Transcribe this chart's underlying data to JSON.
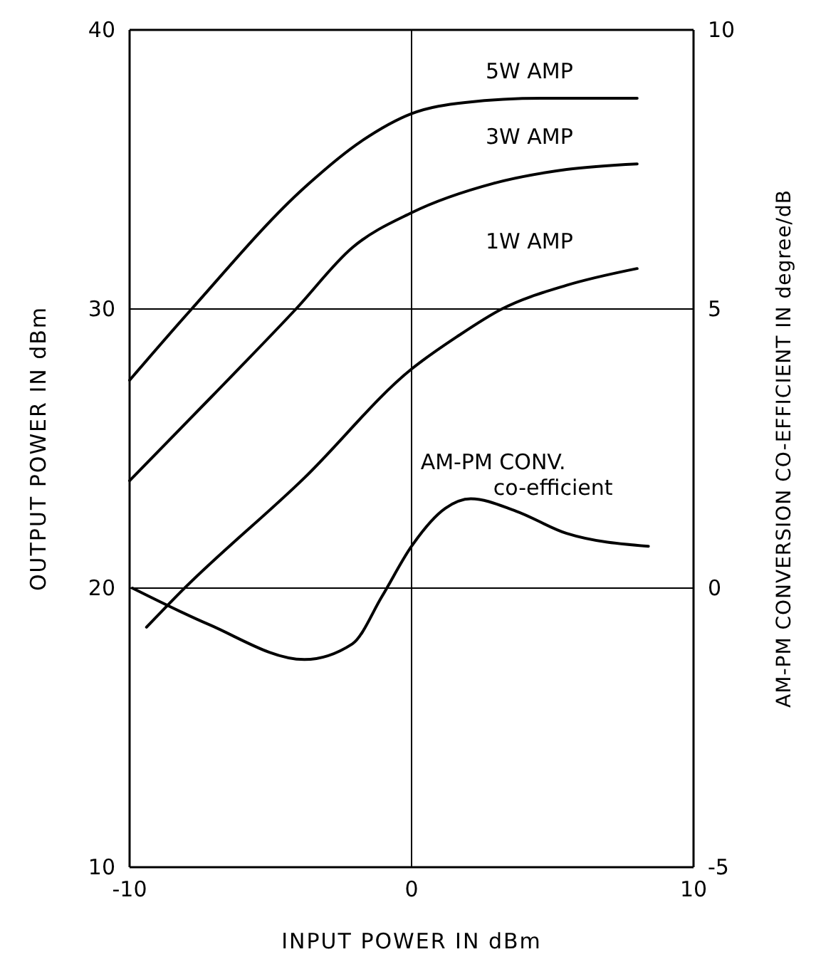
{
  "chart_data": {
    "type": "line",
    "xlabel": "INPUT POWER IN dBm",
    "ylabel": "OUTPUT POWER IN dBm",
    "y2label": "AM-PM CONVERSION CO-EFFICIENT IN degree/dB",
    "xlim": [
      -10,
      10
    ],
    "xticks": [
      {
        "value": -10,
        "label": "-10"
      },
      0,
      10
    ],
    "ylim": [
      10,
      40
    ],
    "yticks": [
      10,
      20,
      30,
      40
    ],
    "y2lim": [
      -5,
      10
    ],
    "y2ticks": [
      {
        "value": -5,
        "label": "-5"
      },
      0,
      5,
      10
    ],
    "grid": true,
    "marker": "none",
    "line_style": "solid",
    "series": [
      {
        "name": "5W AMP",
        "color": "#000000",
        "x": [
          -10,
          -7.8,
          -3.8,
          -1.8,
          0,
          1.9,
          4.6,
          8
        ],
        "values": [
          27.45,
          30,
          34.35,
          36,
          37,
          37.4,
          37.55,
          37.55
        ]
      },
      {
        "name": "3W AMP",
        "color": "#000000",
        "x": [
          -10,
          -7.1,
          -4.1,
          -2.1,
          0,
          2.9,
          5.5,
          8
        ],
        "values": [
          23.85,
          26.85,
          30,
          32.2,
          33.45,
          34.5,
          35,
          35.2
        ]
      },
      {
        "name": "1W AMP",
        "color": "#000000",
        "x": [
          -9.4,
          -8.2,
          -3.8,
          0,
          1.6,
          3.2,
          5.5,
          8
        ],
        "values": [
          18.6,
          19.85,
          23.95,
          27.85,
          29,
          30,
          30.85,
          31.45
        ]
      },
      {
        "name": "AM-PM CONV. co-efficient",
        "color": "#000000",
        "axis": "y2",
        "x": [
          -9.9,
          -7.2,
          -3.8,
          -2.1,
          -1.05,
          0,
          1.2,
          2.1,
          3.7,
          5.5,
          8.4
        ],
        "values": [
          0,
          -0.65,
          -1.28,
          -1,
          -0.15,
          0.75,
          1.43,
          1.6,
          1.38,
          0.98,
          0.75
        ]
      }
    ]
  }
}
